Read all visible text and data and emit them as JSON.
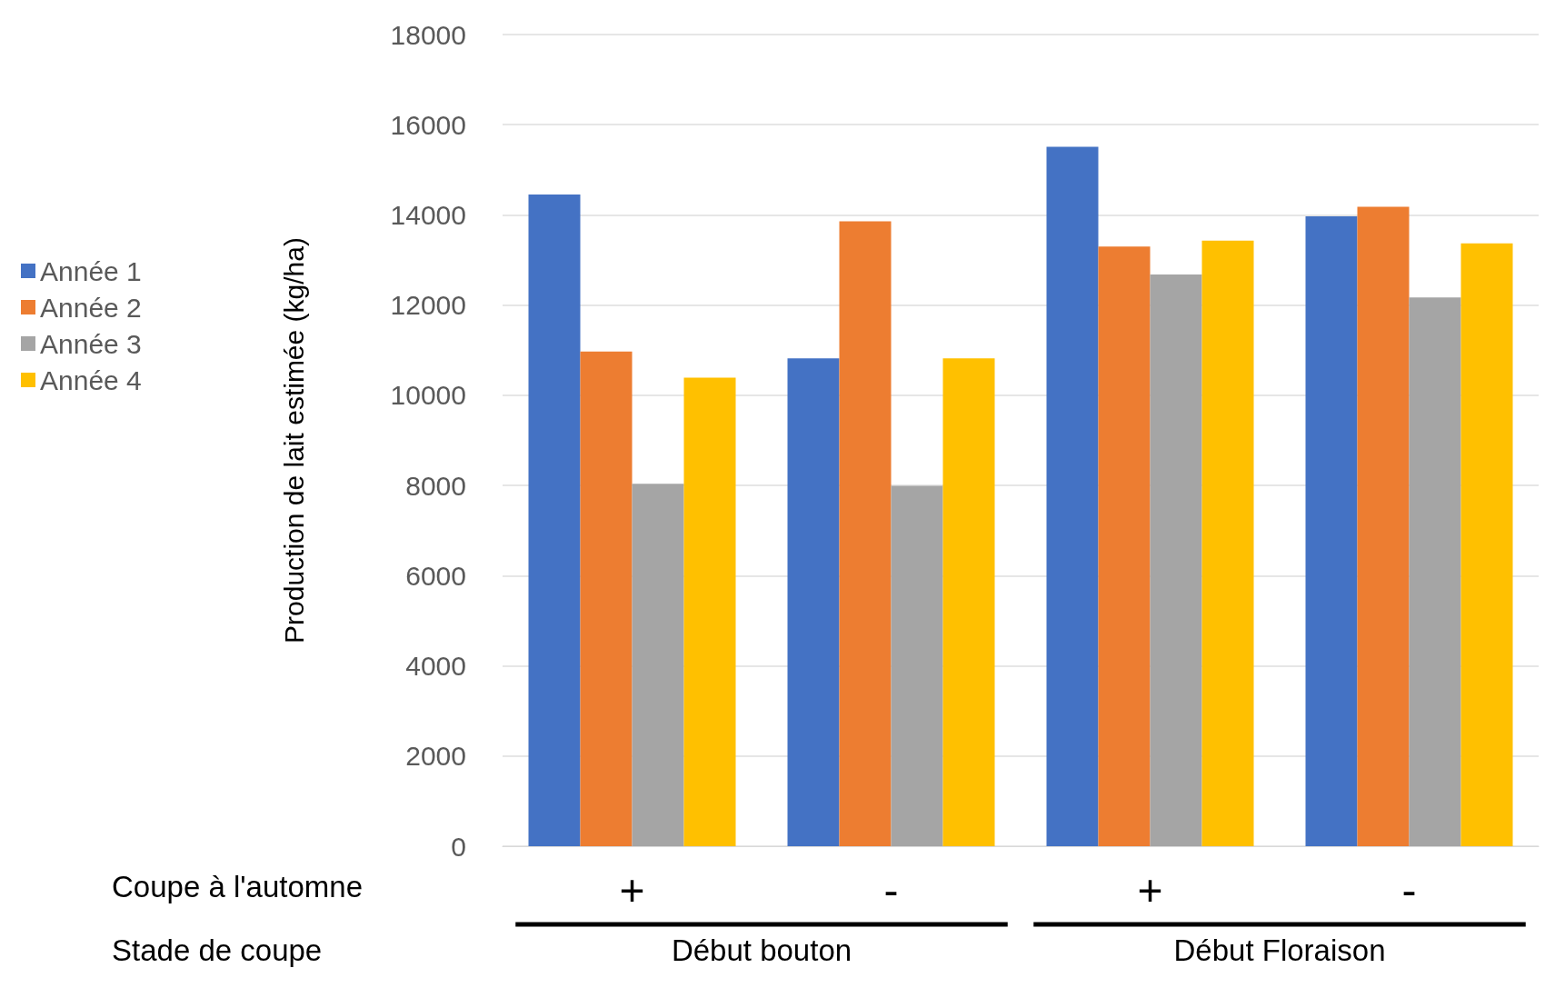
{
  "chart_data": {
    "type": "bar",
    "ylabel": "Production de lait estimée (kg/ha)",
    "categories": [
      "+",
      "-",
      "+",
      "-"
    ],
    "series": [
      {
        "name": "Année 1",
        "color": "#4472c4",
        "values": [
          14450,
          10820,
          15510,
          13970
        ]
      },
      {
        "name": "Année 2",
        "color": "#ed7d31",
        "values": [
          10970,
          13860,
          13300,
          14180
        ]
      },
      {
        "name": "Année 3",
        "color": "#a5a5a5",
        "values": [
          8040,
          7990,
          12680,
          12170
        ]
      },
      {
        "name": "Année 4",
        "color": "#ffc000",
        "values": [
          10390,
          10820,
          13430,
          13370
        ]
      }
    ],
    "ylim": [
      0,
      18000
    ],
    "yticks": [
      0,
      2000,
      4000,
      6000,
      8000,
      10000,
      12000,
      14000,
      16000,
      18000
    ],
    "grid": "y",
    "legend": "left",
    "annotations": [
      "Coupe à l'automne",
      "Stade de coupe",
      "Début bouton",
      "Début Floraison"
    ]
  }
}
